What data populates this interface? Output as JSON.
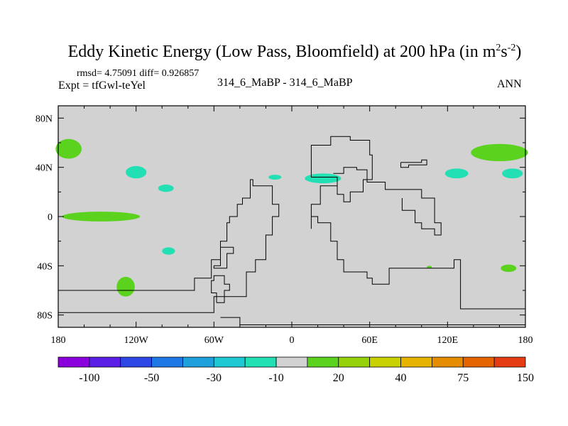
{
  "chart_data": {
    "type": "contour-map",
    "title_main": "Eddy Kinetic Energy (Low Pass, Bloomfield) at 200 hPa (in m",
    "title_sup1": "2",
    "title_mid": "s",
    "title_sup2": "-2",
    "title_end": ")",
    "stats": "rmsd= 4.75091 diff= 0.926857",
    "left_label": "Expt = tfGwl-teYel",
    "center_label": "314_6_MaBP - 314_6_MaBP",
    "right_label": "ANN",
    "lon_range": [
      -180,
      180
    ],
    "lat_range": [
      -90,
      90
    ],
    "x_ticks": [
      {
        "value": -180,
        "label": "180"
      },
      {
        "value": -120,
        "label": "120W"
      },
      {
        "value": -60,
        "label": "60W"
      },
      {
        "value": 0,
        "label": "0"
      },
      {
        "value": 60,
        "label": "60E"
      },
      {
        "value": 120,
        "label": "120E"
      },
      {
        "value": 180,
        "label": "180"
      }
    ],
    "y_ticks": [
      {
        "value": 80,
        "label": "80N"
      },
      {
        "value": 40,
        "label": "40N"
      },
      {
        "value": 0,
        "label": "0"
      },
      {
        "value": -40,
        "label": "40S"
      },
      {
        "value": -80,
        "label": "80S"
      }
    ],
    "colorbar": {
      "colors": [
        "#8a00dc",
        "#5a1ee6",
        "#2d46e6",
        "#1e78e6",
        "#1ea0dc",
        "#1ec8d2",
        "#23e0b4",
        "#d2d2d2",
        "#5ad21e",
        "#96d20a",
        "#c8d200",
        "#e6b400",
        "#e68c00",
        "#e66400",
        "#e63c14"
      ],
      "labels": [
        "-100",
        "-50",
        "-30",
        "-10",
        "20",
        "40",
        "75",
        "150"
      ],
      "label_after_box": [
        1,
        3,
        5,
        7,
        9,
        11,
        13,
        15
      ]
    },
    "regions": [
      {
        "level": 20,
        "color": "#5ad21e",
        "lon": -172,
        "lat": 55,
        "rlon": 10,
        "rlat": 8
      },
      {
        "level": 20,
        "color": "#5ad21e",
        "lon": -147,
        "lat": 0,
        "rlon": 30,
        "rlat": 4
      },
      {
        "level": 20,
        "color": "#5ad21e",
        "lon": -128,
        "lat": -57,
        "rlon": 7,
        "rlat": 8
      },
      {
        "level": 20,
        "color": "#5ad21e",
        "lon": 160,
        "lat": 52,
        "rlon": 22,
        "rlat": 7
      },
      {
        "level": 20,
        "color": "#5ad21e",
        "lon": 167,
        "lat": -42,
        "rlon": 6,
        "rlat": 3
      },
      {
        "level": 20,
        "color": "#5ad21e",
        "lon": 106,
        "lat": -41,
        "rlon": 2,
        "rlat": 1
      },
      {
        "level": -10,
        "color": "#23e0b4",
        "lon": -120,
        "lat": 36,
        "rlon": 8,
        "rlat": 5
      },
      {
        "level": -10,
        "color": "#23e0b4",
        "lon": -97,
        "lat": 23,
        "rlon": 6,
        "rlat": 3
      },
      {
        "level": -10,
        "color": "#23e0b4",
        "lon": -95,
        "lat": -28,
        "rlon": 5,
        "rlat": 3
      },
      {
        "level": -10,
        "color": "#23e0b4",
        "lon": -13,
        "lat": 32,
        "rlon": 5,
        "rlat": 2
      },
      {
        "level": -10,
        "color": "#23e0b4",
        "lon": 24,
        "lat": 31,
        "rlon": 14,
        "rlat": 4
      },
      {
        "level": -10,
        "color": "#23e0b4",
        "lon": 127,
        "lat": 35,
        "rlon": 9,
        "rlat": 4
      },
      {
        "level": -10,
        "color": "#23e0b4",
        "lon": 170,
        "lat": 35,
        "rlon": 8,
        "rlat": 4
      }
    ],
    "outlines": [
      [
        [
          -180,
          -78
        ],
        [
          -80,
          -78
        ],
        [
          -60,
          -65
        ],
        [
          -35,
          -45
        ],
        [
          -28,
          -35
        ],
        [
          -20,
          -15
        ],
        [
          -15,
          0
        ],
        [
          -10,
          10
        ],
        [
          -15,
          25
        ],
        [
          -30,
          30
        ],
        [
          -32,
          15
        ],
        [
          -38,
          10
        ],
        [
          -42,
          0
        ],
        [
          -48,
          -5
        ],
        [
          -50,
          -20
        ],
        [
          -55,
          -35
        ],
        [
          -62,
          -50
        ],
        [
          -75,
          -60
        ],
        [
          -180,
          -75
        ]
      ],
      [
        [
          -58,
          -70
        ],
        [
          -52,
          -60
        ],
        [
          -48,
          -55
        ],
        [
          -52,
          -48
        ],
        [
          -60,
          -52
        ],
        [
          -62,
          -62
        ],
        [
          -58,
          -70
        ]
      ],
      [
        [
          -55,
          -82
        ],
        [
          -40,
          -88
        ],
        [
          180,
          -88
        ],
        [
          180,
          -75
        ],
        [
          130,
          -35
        ],
        [
          125,
          -42
        ],
        [
          75,
          -55
        ],
        [
          62,
          -50
        ],
        [
          58,
          -45
        ],
        [
          40,
          -35
        ],
        [
          35,
          -20
        ],
        [
          30,
          -5
        ],
        [
          20,
          0
        ],
        [
          15,
          -10
        ],
        [
          15,
          10
        ],
        [
          22,
          25
        ],
        [
          35,
          32
        ],
        [
          15,
          40
        ],
        [
          15,
          58
        ],
        [
          30,
          65
        ],
        [
          45,
          62
        ],
        [
          60,
          50
        ],
        [
          62,
          30
        ],
        [
          55,
          20
        ],
        [
          45,
          12
        ],
        [
          40,
          18
        ],
        [
          35,
          25
        ]
      ],
      [
        [
          32,
          35
        ],
        [
          40,
          40
        ],
        [
          50,
          38
        ],
        [
          58,
          28
        ],
        [
          72,
          22
        ],
        [
          90,
          22
        ],
        [
          100,
          15
        ],
        [
          110,
          -5
        ],
        [
          115,
          -15
        ],
        [
          110,
          -10
        ],
        [
          100,
          -5
        ],
        [
          95,
          5
        ],
        [
          85,
          15
        ]
      ],
      [
        [
          84,
          44
        ],
        [
          100,
          46
        ],
        [
          104,
          42
        ],
        [
          90,
          40
        ],
        [
          84,
          44
        ]
      ],
      [
        [
          -60,
          -40
        ],
        [
          -55,
          -25
        ],
        [
          -45,
          -30
        ],
        [
          -50,
          -42
        ],
        [
          -60,
          -40
        ]
      ]
    ]
  }
}
